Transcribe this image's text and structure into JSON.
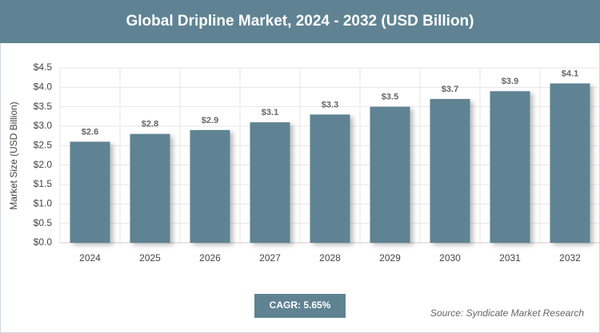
{
  "chart_data": {
    "type": "bar",
    "title": "Global Dripline Market, 2024 - 2032 (USD Billion)",
    "y_label": "Market Size (USD Billion)",
    "categories": [
      "2024",
      "2025",
      "2026",
      "2027",
      "2028",
      "2029",
      "2030",
      "2031",
      "2032"
    ],
    "values": [
      2.6,
      2.8,
      2.9,
      3.1,
      3.3,
      3.5,
      3.7,
      3.9,
      4.1
    ],
    "value_labels": [
      "$2.6",
      "$2.8",
      "$2.9",
      "$3.1",
      "$3.3",
      "$3.5",
      "$3.7",
      "$3.9",
      "$4.1"
    ],
    "color": "#5f8393",
    "ylim": [
      0,
      4.5
    ],
    "yticks": [
      {
        "value": 0,
        "label": "$0.0"
      },
      {
        "value": 0.5,
        "label": "$0.5"
      },
      {
        "value": 1,
        "label": "$1.0"
      },
      {
        "value": 1.5,
        "label": "$1.5"
      },
      {
        "value": 2,
        "label": "$2.0"
      },
      {
        "value": 2.5,
        "label": "$2.5"
      },
      {
        "value": 3,
        "label": "$3.0"
      },
      {
        "value": 3.5,
        "label": "$3.5"
      },
      {
        "value": 4,
        "label": "$4.0"
      },
      {
        "value": 4.5,
        "label": "$4.5"
      }
    ],
    "grid": true,
    "cagr": "CAGR: 5.65%",
    "source": "Source: Syndicate Market Research"
  }
}
